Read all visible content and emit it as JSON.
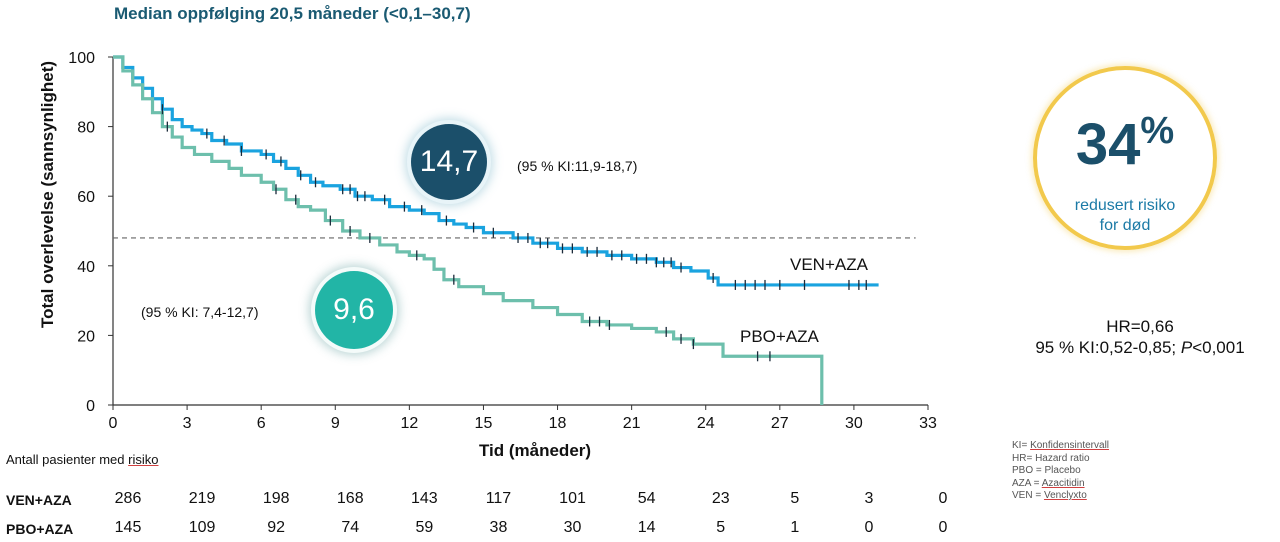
{
  "subtitle": "Median oppfølging 20,5 måneder (<0,1–30,7)",
  "colors": {
    "ven_aza": "#1aa3df",
    "pbo_aza": "#6dbfac",
    "dark_blue": "#1b4f6a",
    "teal": "#22b5a6",
    "gold": "#f2c94c"
  },
  "chart_data": {
    "type": "line",
    "title": "",
    "xlabel": "Tid (måneder)",
    "ylabel": "Total overlevelse (sannsynlighet)",
    "xlim": [
      0,
      33
    ],
    "ylim": [
      0,
      100
    ],
    "x_ticks": [
      "0",
      "3",
      "6",
      "9",
      "12",
      "15",
      "18",
      "21",
      "24",
      "27",
      "30",
      "33"
    ],
    "y_ticks": [
      "0",
      "20",
      "40",
      "60",
      "80",
      "100"
    ],
    "median_reference_y": 48,
    "series": [
      {
        "name": "VEN+AZA",
        "color": "#1aa3df",
        "x": [
          0,
          0.4,
          0.8,
          1.2,
          1.6,
          2.0,
          2.4,
          2.8,
          3.2,
          3.6,
          4.0,
          4.6,
          5.2,
          6.0,
          6.5,
          7.0,
          7.5,
          8.0,
          8.5,
          9.2,
          9.8,
          10.5,
          11.2,
          12.0,
          12.6,
          13.2,
          13.8,
          14.3,
          15.0,
          16.2,
          17.0,
          18.0,
          19.0,
          20.0,
          21.0,
          22.0,
          22.7,
          23.4,
          24.1,
          24.5,
          25.5,
          27.0,
          28.5,
          30.0,
          31.0
        ],
        "y": [
          100,
          97,
          94,
          91,
          88,
          85,
          82,
          80,
          79,
          78,
          76,
          75,
          73,
          72,
          70,
          68,
          66,
          64,
          63,
          62,
          60,
          59,
          57,
          56,
          55,
          53,
          52,
          51,
          49.5,
          48,
          46.5,
          45,
          44,
          43,
          42,
          41,
          39.5,
          38.5,
          36.5,
          34.5,
          34.5,
          34.5,
          34.5,
          34.5,
          34.5
        ]
      },
      {
        "name": "PBO+AZA",
        "color": "#6dbfac",
        "x": [
          0,
          0.4,
          0.8,
          1.2,
          1.6,
          2.0,
          2.4,
          2.8,
          3.3,
          4.0,
          4.7,
          5.2,
          6.0,
          6.5,
          7.0,
          7.5,
          8.0,
          8.6,
          9.3,
          10.0,
          10.8,
          11.5,
          12.0,
          12.6,
          13.0,
          13.4,
          14.0,
          15.0,
          15.8,
          17.0,
          18.0,
          19.0,
          20.0,
          21.0,
          22.0,
          22.7,
          23.5,
          24.7,
          28.7,
          28.7
        ],
        "y": [
          100,
          96,
          92,
          88,
          84,
          80,
          77,
          74,
          72,
          70,
          68,
          66,
          64,
          62,
          59,
          57,
          56,
          53,
          50,
          48,
          46,
          44,
          43,
          42,
          39,
          36,
          34,
          32,
          30,
          28,
          26,
          24,
          23,
          22,
          21,
          19,
          17.5,
          14,
          14,
          0
        ]
      }
    ],
    "censor_marks": {
      "VEN+AZA": [
        2.0,
        3.8,
        4.5,
        5.2,
        6.2,
        6.8,
        7.6,
        8.2,
        9.3,
        9.6,
        9.9,
        10.2,
        11.0,
        11.8,
        12.5,
        13.5,
        14.6,
        15.4,
        16.4,
        16.8,
        17.3,
        17.6,
        18.2,
        18.6,
        19.2,
        19.6,
        20.2,
        20.6,
        21.2,
        21.6,
        22.0,
        22.3,
        22.6,
        23.0,
        24.3,
        25.2,
        25.6,
        26.0,
        26.4,
        27.0,
        28.0,
        29.8,
        30.2,
        30.5
      ],
      "PBO+AZA": [
        2.2,
        6.6,
        7.4,
        8.8,
        9.6,
        10.4,
        12.3,
        13.8,
        19.3,
        19.7,
        20.1,
        22.4,
        23.0,
        23.5,
        26.1,
        26.6
      ]
    }
  },
  "annotations": {
    "ven_median": "14,7",
    "ven_ci": "(95 % KI:11,9-18,7)",
    "pbo_median": "9,6",
    "pbo_ci": "(95 % KI: 7,4-12,7)",
    "ven_label": "VEN+AZA",
    "pbo_label": "PBO+AZA"
  },
  "risk_reduction": {
    "percent": "34",
    "percent_sign": "%",
    "line1": "redusert risiko",
    "line2": "for død"
  },
  "hr": {
    "line1": "HR=0,66",
    "line2_prefix": "95 % KI:0,52-0,85; ",
    "p_letter": "P",
    "p_value": "<0,001"
  },
  "abbreviations": [
    {
      "key": "KI= ",
      "value": "Konfidensintervall",
      "underline": true
    },
    {
      "key": "HR= ",
      "value": "Hazard ratio",
      "underline": false
    },
    {
      "key": "PBO = ",
      "value": "Placebo",
      "underline": false
    },
    {
      "key": "AZA = ",
      "value": "Azacitidin",
      "underline": true
    },
    {
      "key": "VEN = ",
      "value": "Venclyxto",
      "underline": true
    }
  ],
  "at_risk": {
    "title_prefix": "Antall pasienter med ",
    "title_underlined": "risiko",
    "rows": [
      {
        "label": "VEN+AZA",
        "values": [
          "286",
          "219",
          "198",
          "168",
          "143",
          "117",
          "101",
          "54",
          "23",
          "5",
          "3",
          "0"
        ]
      },
      {
        "label": "PBO+AZA",
        "values": [
          "145",
          "109",
          "92",
          "74",
          "59",
          "38",
          "30",
          "14",
          "5",
          "1",
          "0",
          "0"
        ]
      }
    ]
  }
}
